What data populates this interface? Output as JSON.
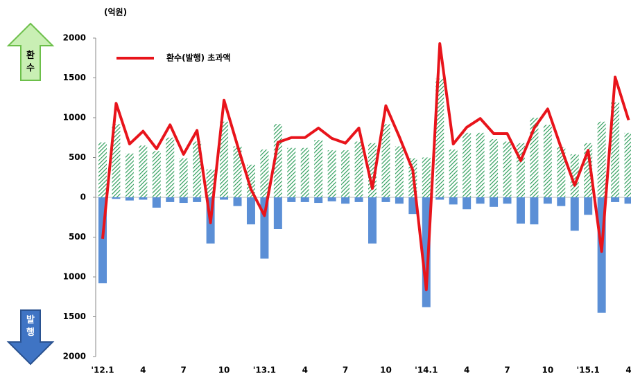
{
  "chart_data": {
    "type": "bar_line",
    "unit_label": "(억원)",
    "up_label": "환\n수",
    "down_label": "발\n행",
    "categories": [
      "'12.1",
      null,
      null,
      "4",
      null,
      null,
      "7",
      null,
      null,
      "10",
      null,
      null,
      "'13.1",
      null,
      null,
      "4",
      null,
      null,
      "7",
      null,
      null,
      "10",
      null,
      null,
      "'14.1",
      null,
      null,
      "4",
      null,
      null,
      "7",
      null,
      null,
      "10",
      null,
      null,
      "'15.1",
      null,
      null,
      "4"
    ],
    "series": [
      {
        "kind": "bar",
        "pattern": "hatch",
        "color": "#2e9e5b",
        "values": [
          690,
          920,
          550,
          650,
          580,
          750,
          490,
          700,
          350,
          950,
          640,
          410,
          600,
          920,
          620,
          620,
          720,
          590,
          590,
          700,
          680,
          920,
          640,
          490,
          500,
          1490,
          600,
          810,
          810,
          730,
          700,
          680,
          1000,
          910,
          630,
          540,
          680,
          950,
          1190,
          810
        ]
      },
      {
        "kind": "bar",
        "color": "#5b8fd6",
        "values": [
          -1080,
          -20,
          -40,
          -30,
          -130,
          -60,
          -70,
          -60,
          -580,
          -30,
          -110,
          -340,
          -770,
          -400,
          -60,
          -60,
          -70,
          -50,
          -80,
          -60,
          -580,
          -60,
          -80,
          -210,
          -1380,
          -30,
          -90,
          -150,
          -80,
          -120,
          -80,
          -330,
          -340,
          -80,
          -110,
          -420,
          -220,
          -1450,
          -60,
          -80
        ]
      },
      {
        "kind": "line",
        "name": "환수(발행) 초과액",
        "color": "#e8141b",
        "values": [
          -520,
          1180,
          670,
          830,
          610,
          910,
          540,
          840,
          -320,
          1220,
          650,
          100,
          -230,
          690,
          750,
          750,
          870,
          740,
          680,
          870,
          110,
          1150,
          760,
          340,
          -1160,
          1930,
          670,
          880,
          990,
          800,
          800,
          460,
          870,
          1110,
          620,
          150,
          590,
          -680,
          1510,
          970
        ]
      }
    ],
    "ylim": [
      -2000,
      2000
    ],
    "yticks": [
      2000,
      1500,
      1000,
      500,
      0,
      {
        "value": -500,
        "label": "500"
      },
      {
        "value": -1000,
        "label": "1000"
      },
      {
        "value": -1500,
        "label": "1500"
      },
      {
        "value": -2000,
        "label": "2000"
      }
    ],
    "legend": "top-left"
  }
}
